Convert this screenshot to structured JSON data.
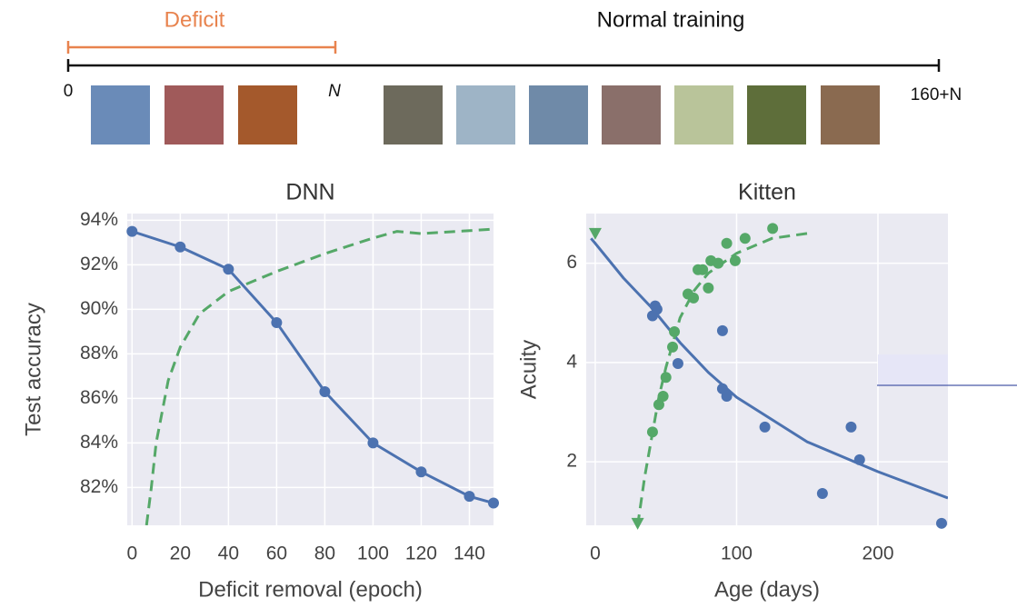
{
  "timeline": {
    "deficit_label": "Deficit",
    "normal_label": "Normal training",
    "start_label": "0",
    "deficit_end_label": "N",
    "end_label": "160+N"
  },
  "chart_data": [
    {
      "type": "scatter",
      "title": "DNN",
      "x_label": "Deficit removal (epoch)",
      "y_label": "Test accuracy",
      "xlim": [
        -2,
        150
      ],
      "ylim": [
        80.3,
        94.3
      ],
      "xticks": [
        0,
        20,
        40,
        60,
        80,
        100,
        120,
        140
      ],
      "yticks": [
        {
          "value": 82,
          "label": "82%"
        },
        {
          "value": 84,
          "label": "84%"
        },
        {
          "value": 86,
          "label": "86%"
        },
        {
          "value": 88,
          "label": "88%"
        },
        {
          "value": 90,
          "label": "90%"
        },
        {
          "value": 92,
          "label": "92%"
        },
        {
          "value": 94,
          "label": "94%"
        }
      ],
      "grid": true,
      "series": [
        {
          "color": "#4c72b0",
          "style": "line",
          "x": [
            0,
            20,
            40,
            60,
            80,
            100,
            120,
            140,
            150
          ],
          "values": [
            93.5,
            92.8,
            91.8,
            89.4,
            86.3,
            84.0,
            82.7,
            81.6,
            81.3
          ]
        },
        {
          "color": "#4c72b0",
          "style": "points",
          "marker": "circle",
          "x": [
            0,
            20,
            40,
            60,
            80,
            100,
            120,
            140,
            150
          ],
          "values": [
            93.5,
            92.8,
            91.8,
            89.4,
            86.3,
            84.0,
            82.7,
            81.6,
            81.3
          ]
        },
        {
          "color": "#55a868",
          "style": "dashed",
          "x": [
            6,
            8,
            10,
            15,
            20,
            28,
            40,
            60,
            80,
            100,
            110,
            120,
            150
          ],
          "values": [
            80.3,
            82,
            84,
            86.8,
            88.3,
            89.8,
            90.8,
            91.7,
            92.5,
            93.2,
            93.5,
            93.4,
            93.6
          ]
        }
      ]
    },
    {
      "type": "scatter",
      "title": "Kitten",
      "x_label": "Age (days)",
      "y_label": "Acuity",
      "xlim": [
        -6.4,
        249.5
      ],
      "ylim": [
        0.72,
        7.0
      ],
      "xticks": [
        0,
        100,
        200
      ],
      "yticks": [
        2,
        4,
        6
      ],
      "grid": true,
      "series": [
        {
          "color": "#4c72b0",
          "style": "line",
          "x": [
            -3,
            0,
            20,
            40,
            60,
            80,
            100,
            150,
            200,
            249.5
          ],
          "values": [
            6.5,
            6.4,
            5.7,
            5.1,
            4.4,
            3.8,
            3.3,
            2.4,
            1.8,
            1.27
          ]
        },
        {
          "color": "#4c72b0",
          "style": "points",
          "marker": "circle",
          "x": [
            42.4,
            43.7,
            40.5,
            58.5,
            90,
            90,
            93,
            120,
            160.7,
            181,
            187,
            245
          ],
          "values": [
            5.14,
            5.07,
            4.94,
            3.98,
            4.64,
            3.47,
            3.32,
            2.7,
            1.36,
            2.7,
            2.04,
            0.76
          ]
        },
        {
          "color": "#55a868",
          "style": "dashed",
          "x": [
            30,
            35,
            40,
            45,
            50,
            60,
            70,
            80,
            100,
            125,
            150
          ],
          "values": [
            0.72,
            1.7,
            2.5,
            3.3,
            3.9,
            4.9,
            5.45,
            5.8,
            6.2,
            6.5,
            6.6
          ]
        },
        {
          "color": "#55a868",
          "style": "points",
          "marker": "circle",
          "x": [
            40.5,
            45,
            48,
            50,
            54.7,
            56,
            65.6,
            69.5,
            72.7,
            76,
            80,
            81.8,
            87,
            93,
            99,
            106,
            125.5
          ],
          "values": [
            2.6,
            3.15,
            3.32,
            3.7,
            4.31,
            4.62,
            5.38,
            5.3,
            5.87,
            5.87,
            5.5,
            6.05,
            6.0,
            6.4,
            6.05,
            6.5,
            6.7
          ]
        },
        {
          "color": "#55a868",
          "style": "points",
          "marker": "triangle",
          "x": [
            0,
            30
          ],
          "values": [
            6.6,
            0.76
          ]
        }
      ]
    }
  ]
}
